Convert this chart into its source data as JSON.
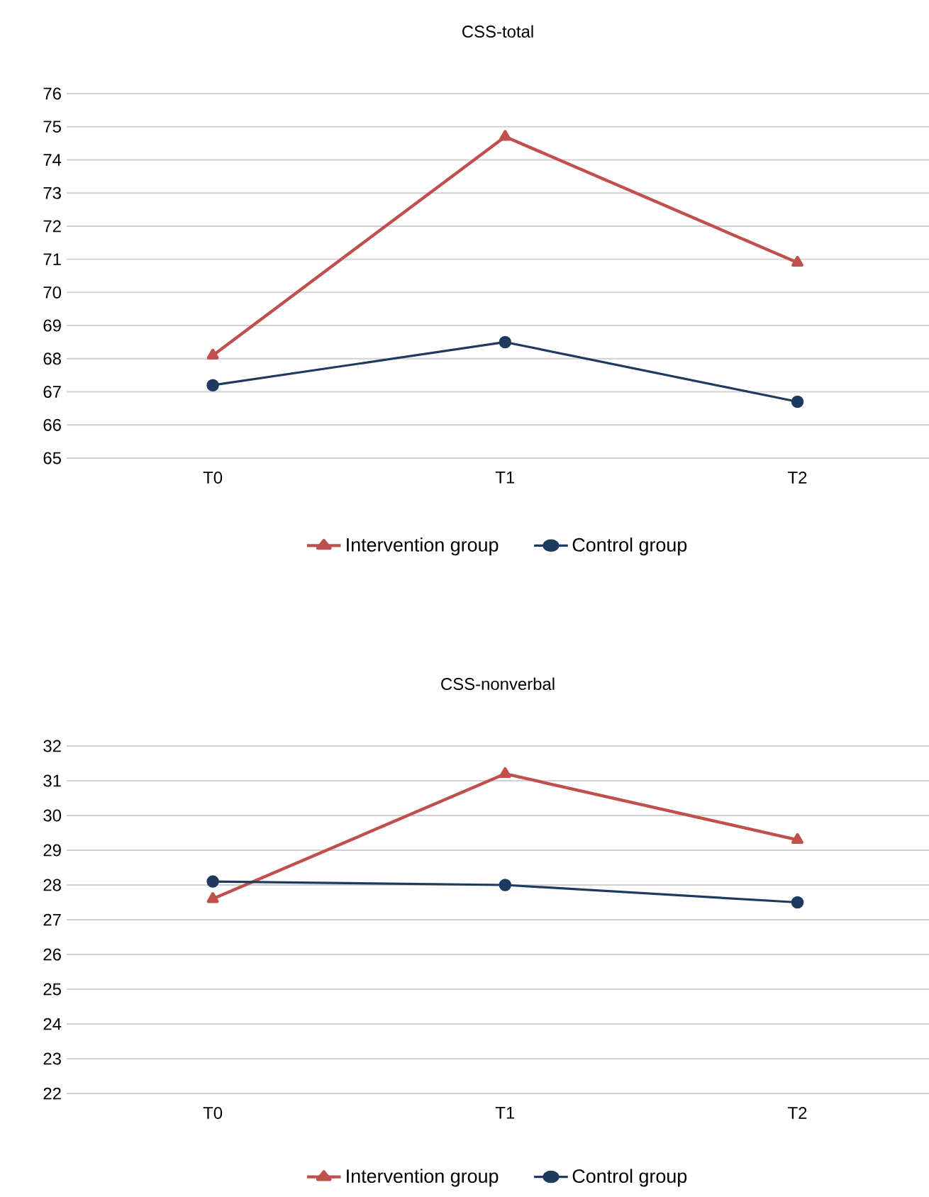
{
  "chart_data": [
    {
      "type": "line",
      "title": "CSS-total",
      "categories": [
        "T0",
        "T1",
        "T2"
      ],
      "ylim": [
        65,
        76
      ],
      "yticks": [
        65,
        66,
        67,
        68,
        69,
        70,
        71,
        72,
        73,
        74,
        75,
        76
      ],
      "grid": "y",
      "legend": "bottom",
      "series": [
        {
          "name": "Intervention group",
          "color": "#c0504d",
          "marker": "triangle",
          "values": [
            68.1,
            74.7,
            70.9
          ]
        },
        {
          "name": "Control group",
          "color": "#1f3a5f",
          "marker": "circle",
          "values": [
            67.2,
            68.5,
            66.7
          ]
        }
      ]
    },
    {
      "type": "line",
      "title": "CSS-nonverbal",
      "categories": [
        "T0",
        "T1",
        "T2"
      ],
      "ylim": [
        22,
        32
      ],
      "yticks": [
        22,
        23,
        24,
        25,
        26,
        27,
        28,
        29,
        30,
        31,
        32
      ],
      "grid": "y",
      "legend": "bottom",
      "series": [
        {
          "name": "Intervention group",
          "color": "#c0504d",
          "marker": "triangle",
          "values": [
            27.6,
            31.2,
            29.3
          ]
        },
        {
          "name": "Control group",
          "color": "#1f3a5f",
          "marker": "circle",
          "values": [
            28.1,
            28.0,
            27.5
          ]
        }
      ]
    }
  ]
}
